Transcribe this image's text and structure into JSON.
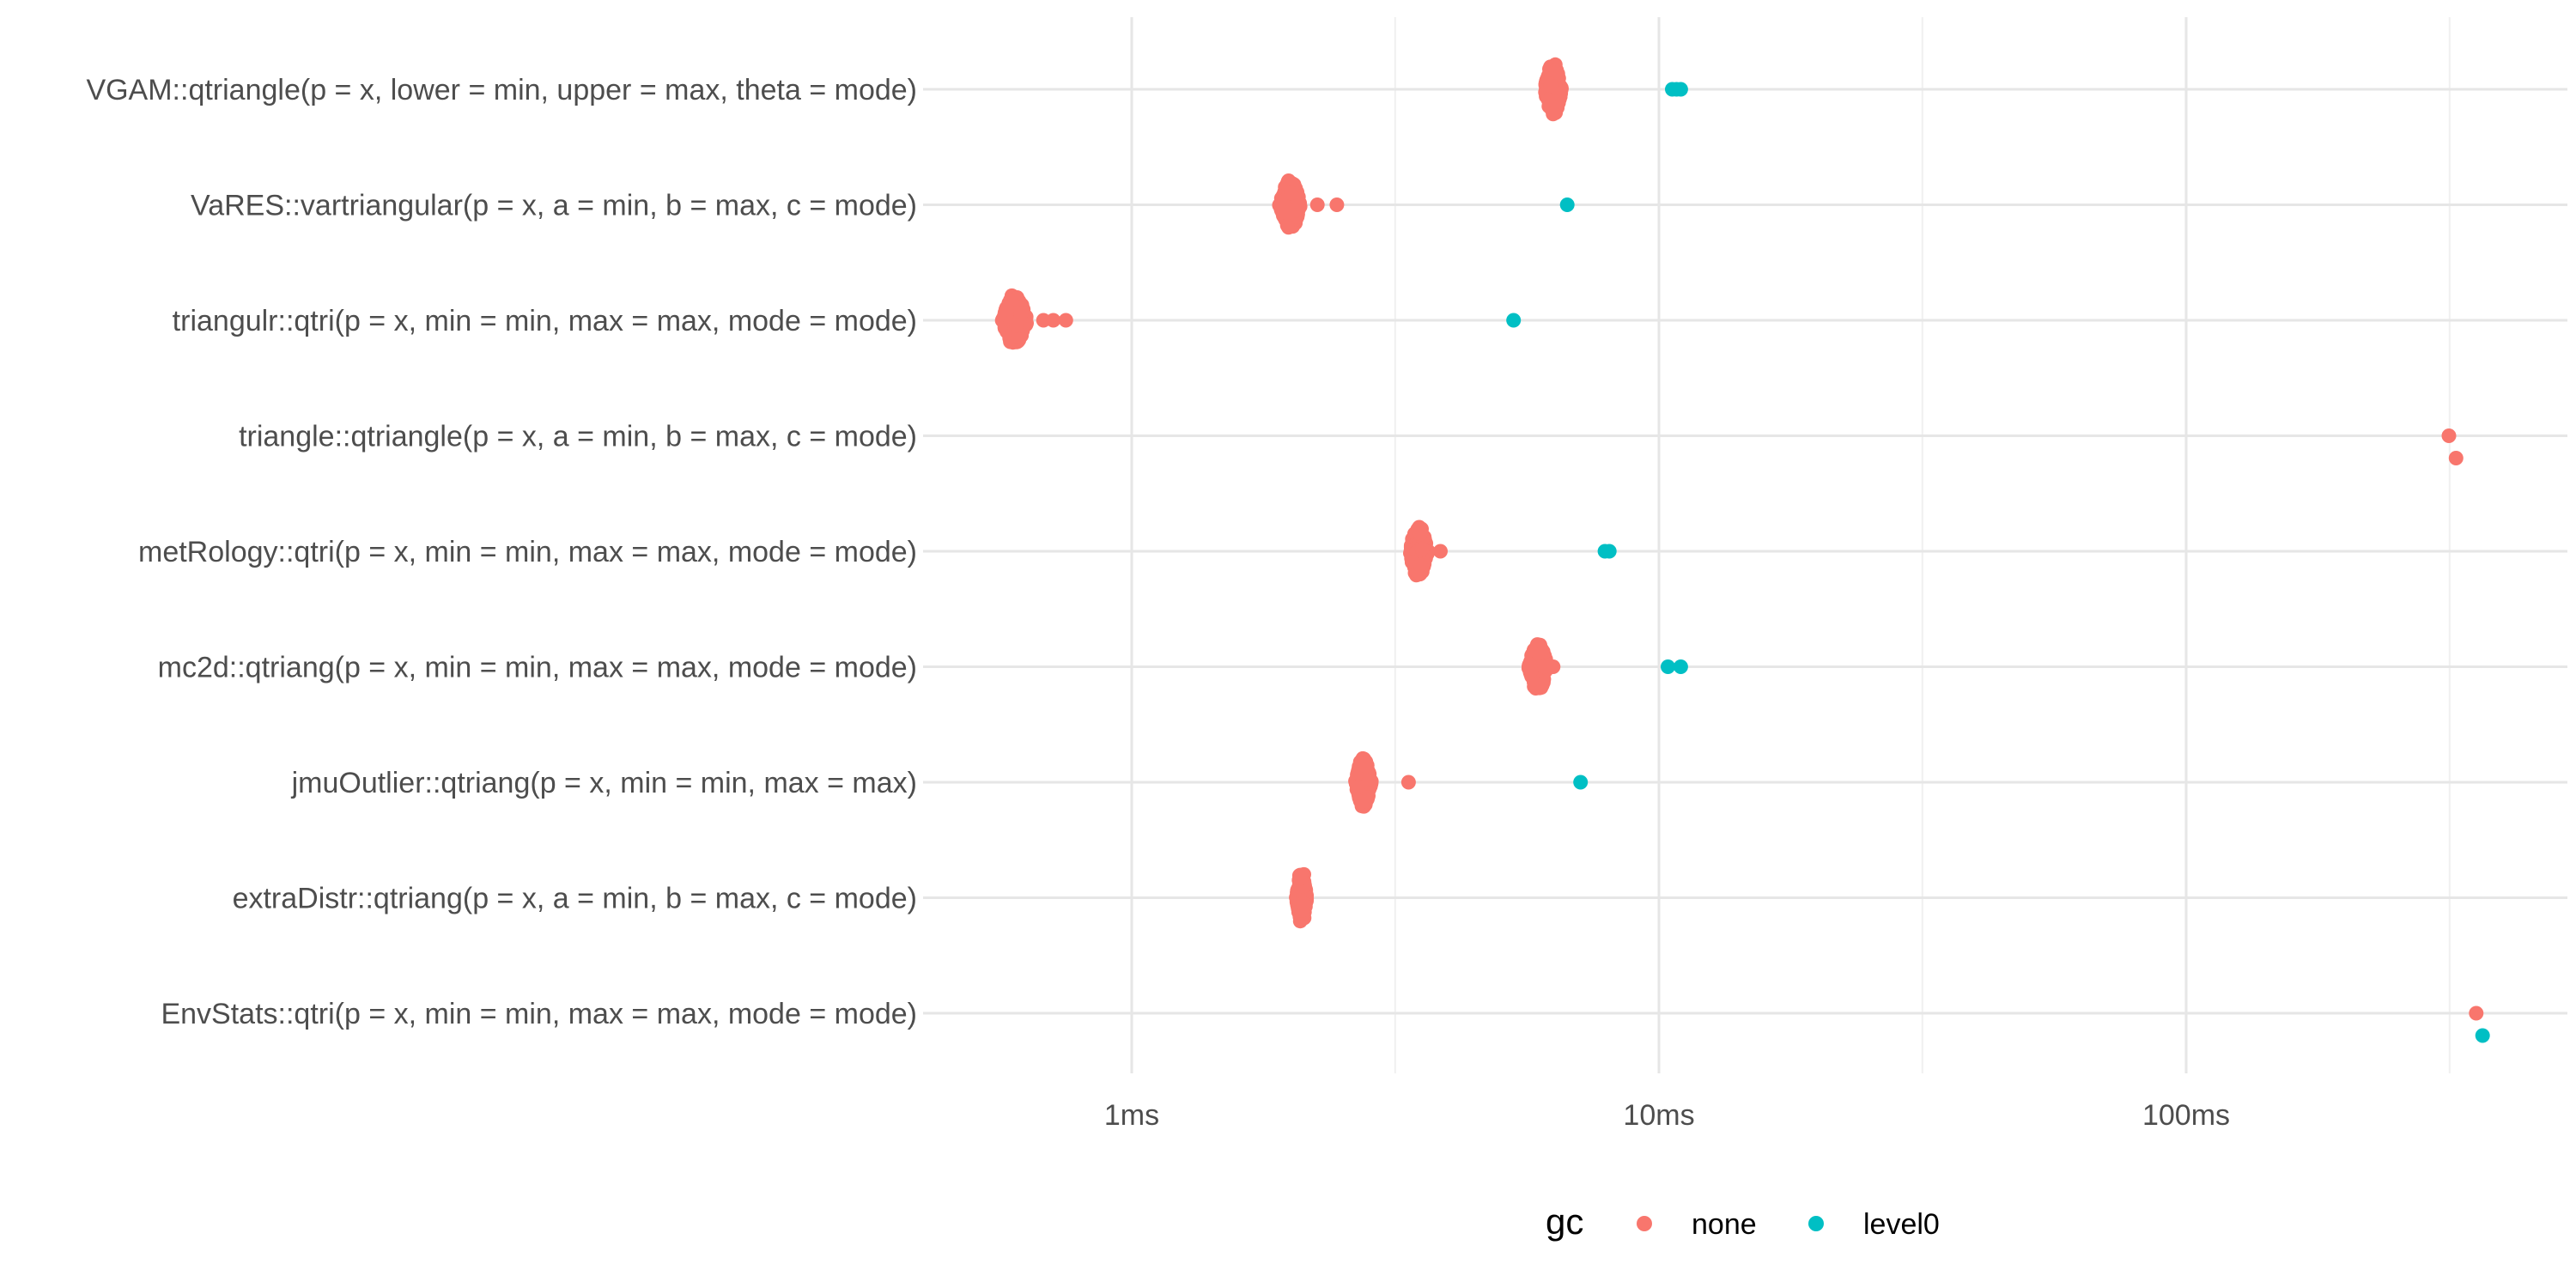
{
  "chart_data": {
    "type": "scatter",
    "title": "",
    "xlabel": "",
    "ylabel": "",
    "x_scale": "log10",
    "xlim_ms": [
      0.38,
      480
    ],
    "grid": true,
    "x_ticks": [
      {
        "value": 1,
        "label": "1ms"
      },
      {
        "value": 10,
        "label": "10ms"
      },
      {
        "value": 100,
        "label": "100ms"
      }
    ],
    "x_minor_ticks": [
      3.16,
      31.6,
      316
    ],
    "categories": [
      "VGAM::qtriangle(p = x, lower = min, upper = max, theta = mode)",
      "VaRES::vartriangular(p = x, a = min, b = max, c = mode)",
      "triangulr::qtri(p = x, min = min, max = max, mode = mode)",
      "triangle::qtriangle(p = x, a = min, b = max, c = mode)",
      "metRology::qtri(p = x, min = min, max = max, mode = mode)",
      "mc2d::qtriang(p = x, min = min, max = max, mode = mode)",
      "jmuOutlier::qtriang(p = x, min = min, max = max)",
      "extraDistr::qtriang(p = x, a = min, b = max, c = mode)",
      "EnvStats::qtri(p = x, min = min, max = max, mode = mode)"
    ],
    "series": [
      {
        "name": "none",
        "color": "#F8766D",
        "groups": [
          {
            "category": "VGAM::qtriangle(p = x, lower = min, upper = max, theta = mode)",
            "center_ms": 6.3,
            "spread_ms": [
              6.1,
              6.6
            ],
            "outliers_ms": []
          },
          {
            "category": "VaRES::vartriangular(p = x, a = min, b = max, c = mode)",
            "center_ms": 2.0,
            "spread_ms": [
              1.95,
              2.15
            ],
            "outliers_ms": [
              2.25,
              2.45
            ]
          },
          {
            "category": "triangulr::qtri(p = x, min = min, max = max, mode = mode)",
            "center_ms": 0.6,
            "spread_ms": [
              0.58,
              0.65
            ],
            "outliers_ms": [
              0.68,
              0.71,
              0.75
            ]
          },
          {
            "category": "triangle::qtriangle(p = x, a = min, b = max, c = mode)",
            "center_ms": 320,
            "spread_ms": [],
            "outliers_ms": [
              315,
              325
            ]
          },
          {
            "category": "metRology::qtri(p = x, min = min, max = max, mode = mode)",
            "center_ms": 3.5,
            "spread_ms": [
              3.35,
              3.65
            ],
            "outliers_ms": [
              3.85
            ]
          },
          {
            "category": "mc2d::qtriang(p = x, min = min, max = max, mode = mode)",
            "center_ms": 5.9,
            "spread_ms": [
              5.6,
              6.1
            ],
            "outliers_ms": [
              6.3
            ]
          },
          {
            "category": "jmuOutlier::qtriang(p = x, min = min, max = max)",
            "center_ms": 2.75,
            "spread_ms": [
              2.65,
              2.85
            ],
            "outliers_ms": [
              3.35
            ]
          },
          {
            "category": "extraDistr::qtriang(p = x, a = min, b = max, c = mode)",
            "center_ms": 2.1,
            "spread_ms": [
              2.06,
              2.16
            ],
            "outliers_ms": []
          },
          {
            "category": "EnvStats::qtri(p = x, min = min, max = max, mode = mode)",
            "center_ms": 355,
            "spread_ms": [],
            "outliers_ms": [
              355
            ]
          }
        ]
      },
      {
        "name": "level0",
        "color": "#00BFC4",
        "groups": [
          {
            "category": "VGAM::qtriangle(p = x, lower = min, upper = max, theta = mode)",
            "points_ms": [
              10.6,
              10.8,
              11.0
            ]
          },
          {
            "category": "VaRES::vartriangular(p = x, a = min, b = max, c = mode)",
            "points_ms": [
              6.7
            ]
          },
          {
            "category": "triangulr::qtri(p = x, min = min, max = max, mode = mode)",
            "points_ms": [
              5.3
            ]
          },
          {
            "category": "triangle::qtriangle(p = x, a = min, b = max, c = mode)",
            "points_ms": []
          },
          {
            "category": "metRology::qtri(p = x, min = min, max = max, mode = mode)",
            "points_ms": [
              7.9,
              8.05
            ]
          },
          {
            "category": "mc2d::qtriang(p = x, min = min, max = max, mode = mode)",
            "points_ms": [
              10.4,
              11.0
            ]
          },
          {
            "category": "jmuOutlier::qtriang(p = x, min = min, max = max)",
            "points_ms": [
              7.1
            ]
          },
          {
            "category": "extraDistr::qtriang(p = x, a = min, b = max, c = mode)",
            "points_ms": []
          },
          {
            "category": "EnvStats::qtri(p = x, min = min, max = max, mode = mode)",
            "points_ms": [
              365
            ]
          }
        ]
      }
    ],
    "legend": {
      "title": "gc",
      "position": "bottom",
      "entries": [
        {
          "label": "none",
          "color": "#F8766D"
        },
        {
          "label": "level0",
          "color": "#00BFC4"
        }
      ]
    }
  }
}
